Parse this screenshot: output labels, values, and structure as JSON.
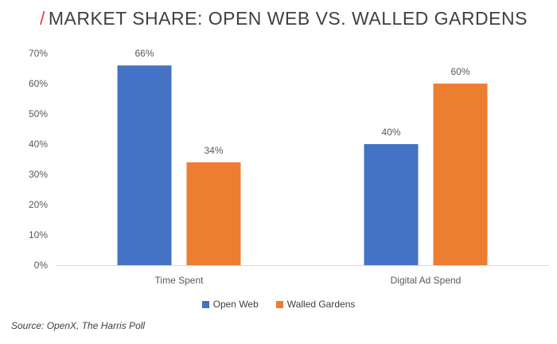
{
  "title": {
    "slash": "/",
    "text": "MARKET SHARE: OPEN WEB VS. WALLED GARDENS"
  },
  "source": "Source: OpenX, The Harris Poll",
  "chart_data": {
    "type": "bar",
    "categories": [
      "Time Spent",
      "Digital Ad Spend"
    ],
    "series": [
      {
        "name": "Open Web",
        "values": [
          66,
          40
        ],
        "color": "#4472c4"
      },
      {
        "name": "Walled Gardens",
        "values": [
          34,
          60
        ],
        "color": "#ed7d31"
      }
    ],
    "data_labels": [
      [
        "66%",
        "40%"
      ],
      [
        "34%",
        "60%"
      ]
    ],
    "yticks": [
      "0%",
      "10%",
      "20%",
      "30%",
      "40%",
      "50%",
      "60%",
      "70%"
    ],
    "ylim": [
      0,
      70
    ],
    "grid": false,
    "legend_position": "bottom"
  }
}
